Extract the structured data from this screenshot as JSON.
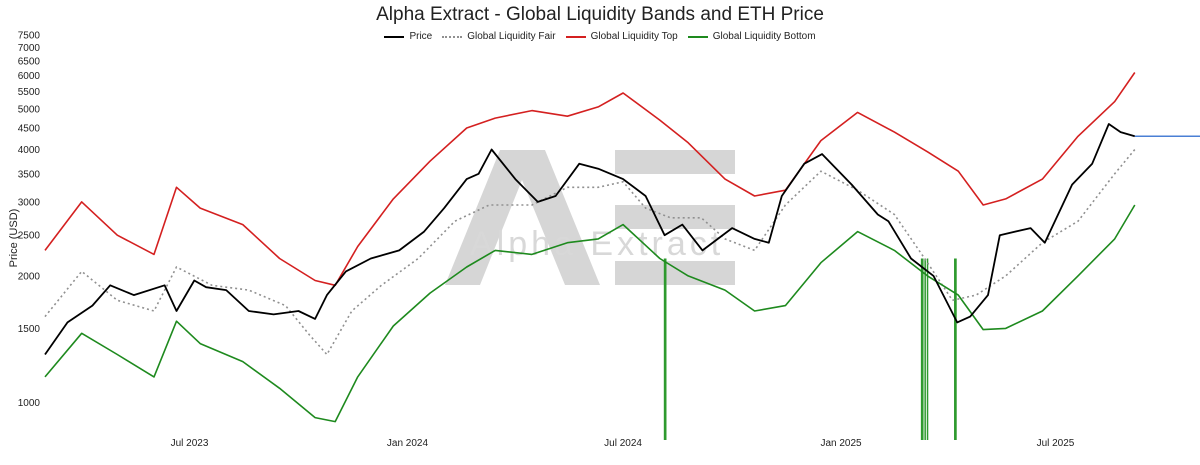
{
  "chart_data": {
    "type": "line",
    "title": "Alpha Extract - Global Liquidity Bands and ETH Price",
    "ylabel": "Price (USD)",
    "xlabel": "",
    "y_scale": "log",
    "ylim": [
      850,
      7700
    ],
    "xlim": [
      "2023-03-01",
      "2025-10-31"
    ],
    "y_ticks": [
      1000,
      1500,
      2000,
      2500,
      3000,
      3500,
      4000,
      4500,
      5000,
      5500,
      6000,
      6500,
      7000,
      7500
    ],
    "x_ticks": [
      {
        "label": "Jul 2023",
        "date": "2023-07-01"
      },
      {
        "label": "Jan 2024",
        "date": "2024-01-01"
      },
      {
        "label": "Jul 2024",
        "date": "2024-07-01"
      },
      {
        "label": "Jan 2025",
        "date": "2025-01-01"
      },
      {
        "label": "Jul 2025",
        "date": "2025-07-01"
      }
    ],
    "legend": {
      "position": "top-center"
    },
    "watermark": "Alpha Extract",
    "current_price_line": {
      "value": 4300,
      "color": "#4a7fd4"
    },
    "series": [
      {
        "name": "Price",
        "color": "#000000",
        "style": "solid",
        "dates": [
          "2023-03-01",
          "2023-03-20",
          "2023-04-10",
          "2023-04-25",
          "2023-05-15",
          "2023-06-10",
          "2023-06-20",
          "2023-07-05",
          "2023-07-15",
          "2023-08-01",
          "2023-08-20",
          "2023-09-10",
          "2023-10-01",
          "2023-10-15",
          "2023-10-25",
          "2023-11-10",
          "2023-12-01",
          "2023-12-25",
          "2024-01-15",
          "2024-02-01",
          "2024-02-20",
          "2024-03-01",
          "2024-03-12",
          "2024-04-01",
          "2024-04-20",
          "2024-05-05",
          "2024-05-25",
          "2024-06-10",
          "2024-07-01",
          "2024-07-20",
          "2024-08-05",
          "2024-08-20",
          "2024-09-06",
          "2024-10-01",
          "2024-10-20",
          "2024-11-01",
          "2024-11-12",
          "2024-12-01",
          "2024-12-16",
          "2025-01-10",
          "2025-02-01",
          "2025-02-10",
          "2025-03-01",
          "2025-03-20",
          "2025-04-09",
          "2025-04-20",
          "2025-05-05",
          "2025-05-15",
          "2025-06-10",
          "2025-06-22",
          "2025-07-15",
          "2025-08-01",
          "2025-08-15",
          "2025-08-25",
          "2025-09-06"
        ],
        "values": [
          1300,
          1550,
          1700,
          1900,
          1800,
          1900,
          1650,
          1950,
          1880,
          1850,
          1650,
          1620,
          1650,
          1580,
          1800,
          2050,
          2200,
          2300,
          2550,
          2900,
          3400,
          3500,
          4000,
          3400,
          3000,
          3100,
          3700,
          3600,
          3400,
          3100,
          2500,
          2650,
          2300,
          2600,
          2450,
          2400,
          3100,
          3700,
          3900,
          3300,
          2800,
          2700,
          2200,
          2000,
          1550,
          1600,
          1800,
          2500,
          2600,
          2400,
          3300,
          3700,
          4600,
          4400,
          4300
        ]
      },
      {
        "name": "Global Liquidity Fair",
        "color": "#909090",
        "style": "dotted",
        "dates": [
          "2023-03-01",
          "2023-04-01",
          "2023-05-01",
          "2023-06-01",
          "2023-06-20",
          "2023-07-20",
          "2023-08-20",
          "2023-09-20",
          "2023-10-10",
          "2023-10-25",
          "2023-11-15",
          "2023-12-10",
          "2024-01-10",
          "2024-02-10",
          "2024-03-10",
          "2024-04-15",
          "2024-05-15",
          "2024-06-10",
          "2024-07-01",
          "2024-07-20",
          "2024-08-10",
          "2024-09-05",
          "2024-09-25",
          "2024-10-20",
          "2024-11-15",
          "2024-12-15",
          "2025-01-15",
          "2025-02-15",
          "2025-03-15",
          "2025-04-05",
          "2025-04-25",
          "2025-05-20",
          "2025-06-20",
          "2025-07-20",
          "2025-08-20",
          "2025-09-06"
        ],
        "values": [
          1600,
          2050,
          1750,
          1650,
          2100,
          1900,
          1850,
          1700,
          1450,
          1300,
          1650,
          1900,
          2200,
          2700,
          2950,
          2950,
          3250,
          3250,
          3350,
          2900,
          2750,
          2750,
          2450,
          2300,
          2950,
          3550,
          3200,
          2800,
          2150,
          1750,
          1800,
          2000,
          2400,
          2700,
          3500,
          4000
        ]
      },
      {
        "name": "Global Liquidity Top",
        "color": "#d42020",
        "style": "solid",
        "dates": [
          "2023-03-01",
          "2023-04-01",
          "2023-05-01",
          "2023-06-01",
          "2023-06-20",
          "2023-07-10",
          "2023-08-15",
          "2023-09-15",
          "2023-10-15",
          "2023-11-01",
          "2023-11-20",
          "2023-12-20",
          "2024-01-20",
          "2024-02-20",
          "2024-03-15",
          "2024-04-15",
          "2024-05-15",
          "2024-06-10",
          "2024-07-01",
          "2024-08-01",
          "2024-08-25",
          "2024-09-25",
          "2024-10-20",
          "2024-11-15",
          "2024-12-15",
          "2025-01-15",
          "2025-02-15",
          "2025-03-15",
          "2025-04-10",
          "2025-05-01",
          "2025-05-20",
          "2025-06-20",
          "2025-07-20",
          "2025-08-20",
          "2025-09-06"
        ],
        "values": [
          2300,
          3000,
          2500,
          2250,
          3250,
          2900,
          2650,
          2200,
          1950,
          1900,
          2350,
          3050,
          3750,
          4500,
          4750,
          4950,
          4800,
          5050,
          5450,
          4700,
          4150,
          3400,
          3100,
          3200,
          4200,
          4900,
          4400,
          3950,
          3550,
          2950,
          3050,
          3400,
          4300,
          5200,
          6100
        ]
      },
      {
        "name": "Global Liquidity Bottom",
        "color": "#1e8a1e",
        "style": "solid",
        "dates": [
          "2023-03-01",
          "2023-04-01",
          "2023-05-01",
          "2023-06-01",
          "2023-06-20",
          "2023-07-10",
          "2023-08-15",
          "2023-09-15",
          "2023-10-15",
          "2023-11-01",
          "2023-11-20",
          "2023-12-20",
          "2024-01-20",
          "2024-02-20",
          "2024-03-15",
          "2024-04-15",
          "2024-05-15",
          "2024-06-10",
          "2024-07-01",
          "2024-08-01",
          "2024-08-25",
          "2024-09-25",
          "2024-10-20",
          "2024-11-15",
          "2024-12-15",
          "2025-01-15",
          "2025-02-15",
          "2025-03-15",
          "2025-04-10",
          "2025-05-01",
          "2025-05-20",
          "2025-06-20",
          "2025-07-20",
          "2025-08-20",
          "2025-09-06"
        ],
        "values": [
          1150,
          1460,
          1300,
          1150,
          1560,
          1380,
          1250,
          1080,
          920,
          900,
          1150,
          1520,
          1820,
          2100,
          2300,
          2250,
          2400,
          2450,
          2650,
          2200,
          2000,
          1850,
          1650,
          1700,
          2150,
          2550,
          2300,
          2000,
          1800,
          1490,
          1500,
          1650,
          2000,
          2450,
          2950
        ]
      }
    ],
    "band_breach_markers": {
      "color": "#2e9a2e",
      "dates": [
        "2024-08-05",
        "2024-08-06",
        "2025-03-10",
        "2025-03-11",
        "2025-03-13",
        "2025-03-15",
        "2025-04-07",
        "2025-04-08"
      ]
    }
  }
}
